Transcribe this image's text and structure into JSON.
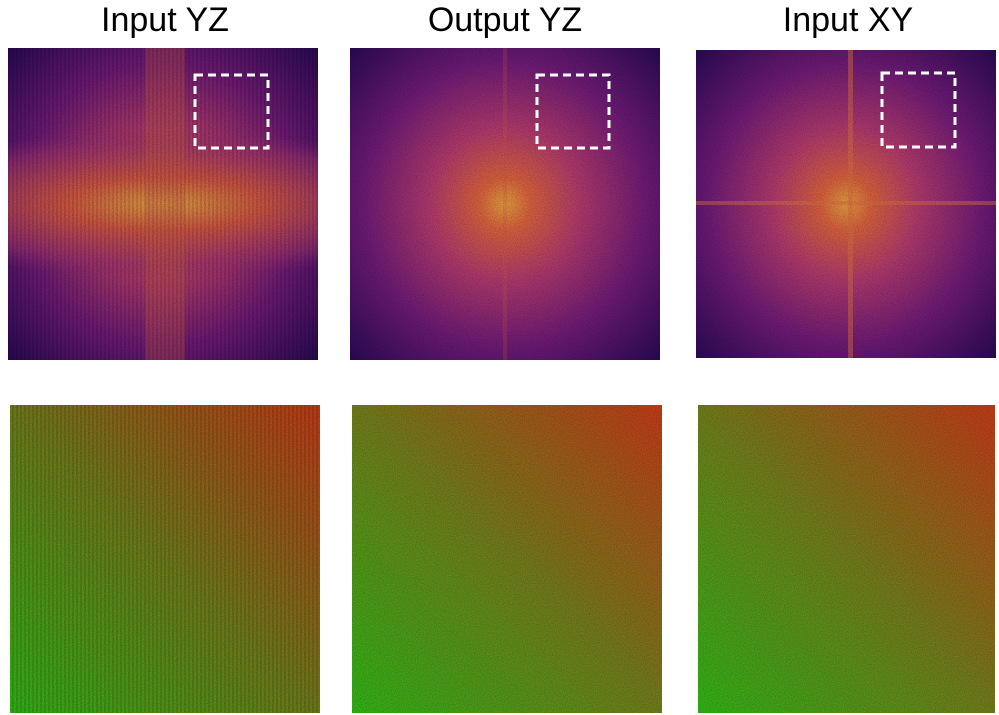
{
  "titles": [
    "Input YZ",
    "Output YZ",
    "Input XY"
  ]
}
